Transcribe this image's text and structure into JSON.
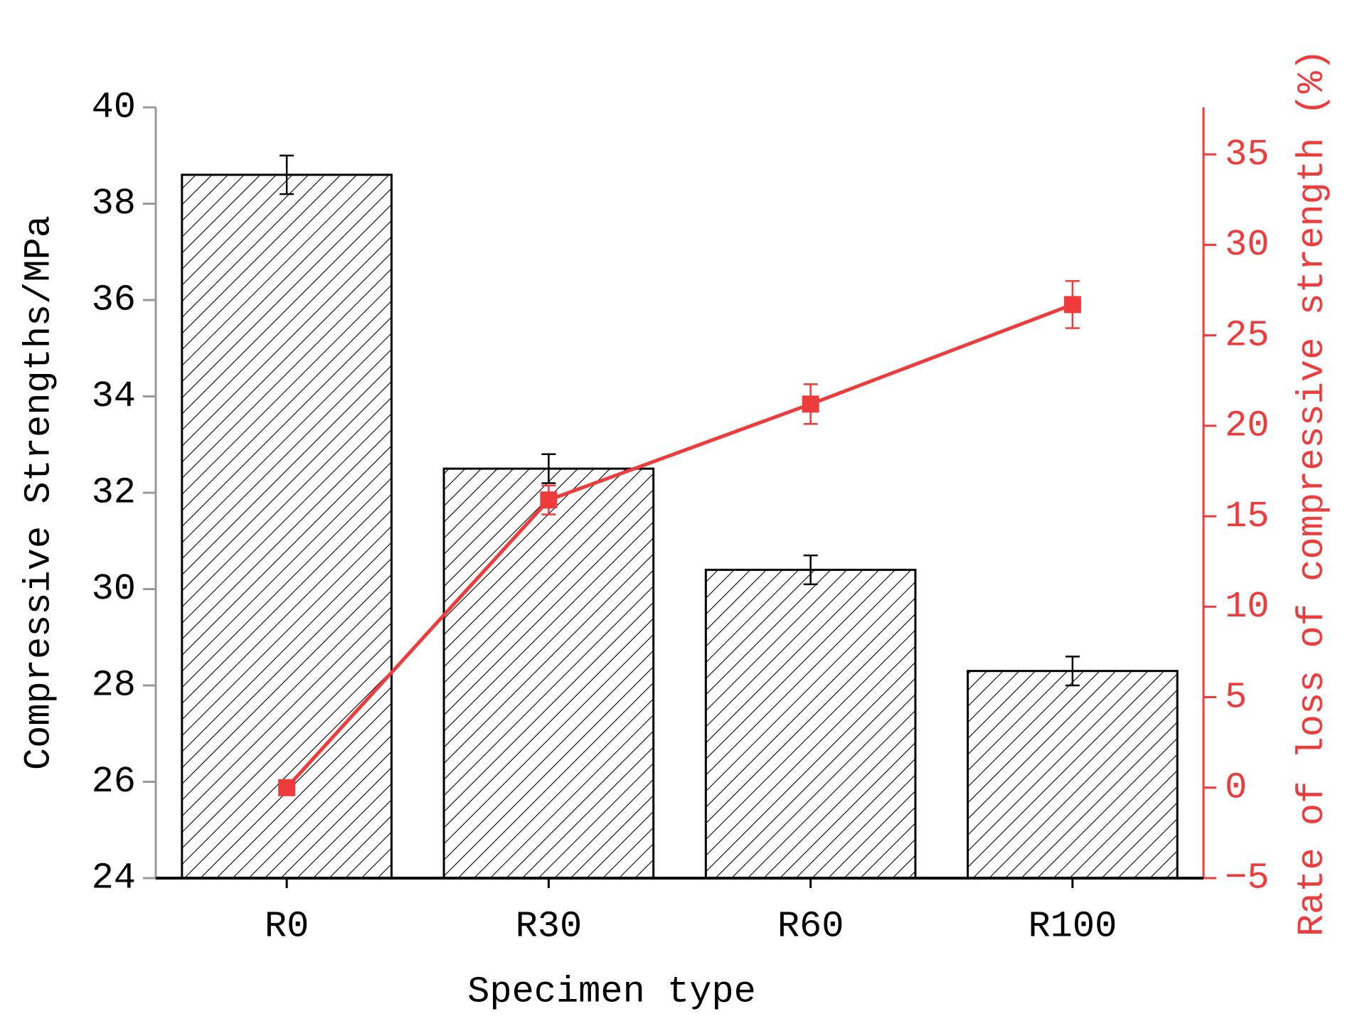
{
  "chart_data": {
    "type": "bar",
    "xlabel": "Specimen type",
    "ylabel": "Compressive Strengths/MPa",
    "y2label": "Rate of loss of compressive strength (%)",
    "categories": [
      "R0",
      "R30",
      "R60",
      "R100"
    ],
    "series": [
      {
        "type": "bar",
        "color": "#000000",
        "hatch": true,
        "values": [
          38.6,
          32.5,
          30.4,
          28.3
        ],
        "errors": [
          0.4,
          0.3,
          0.3,
          0.3
        ]
      },
      {
        "type": "line",
        "axis": "y2",
        "color": "#ee3b3b",
        "values": [
          0,
          15.9,
          21.2,
          26.7
        ],
        "errors": [
          0,
          0.8,
          1.1,
          1.3
        ]
      }
    ],
    "ylim": [
      24,
      40
    ],
    "yticks": [
      24,
      26,
      28,
      30,
      32,
      34,
      36,
      38,
      40
    ],
    "y2lim": [
      -5,
      37.6
    ],
    "y2ticks": [
      {
        "value": -5,
        "label": "−5"
      },
      0,
      5,
      10,
      15,
      20,
      25,
      30,
      35
    ]
  }
}
